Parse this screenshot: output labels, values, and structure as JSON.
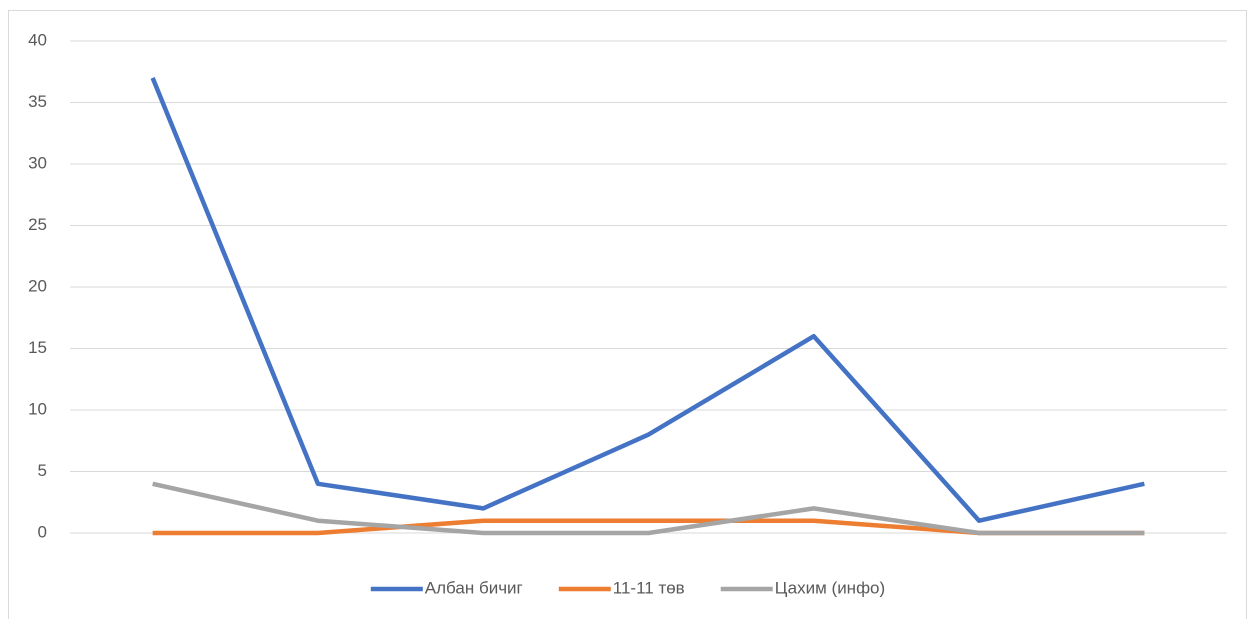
{
  "chart_data": {
    "type": "line",
    "categories": [
      null,
      null,
      null,
      null,
      null,
      null,
      null
    ],
    "series": [
      {
        "name": "Албан бичиг",
        "color": "#4472c4",
        "values": [
          37,
          4,
          2,
          8,
          16,
          1,
          4
        ]
      },
      {
        "name": "11-11 төв",
        "color": "#ed7d31",
        "values": [
          0,
          0,
          1,
          1,
          1,
          0,
          0
        ]
      },
      {
        "name": "Цахим (инфо)",
        "color": "#a5a5a5",
        "values": [
          4,
          1,
          0,
          0,
          2,
          0,
          0
        ]
      }
    ],
    "ylim": [
      0,
      40
    ],
    "yticks": [
      0,
      5,
      10,
      15,
      20,
      25,
      30,
      35,
      40
    ],
    "grid": true,
    "legend": "bottom"
  }
}
